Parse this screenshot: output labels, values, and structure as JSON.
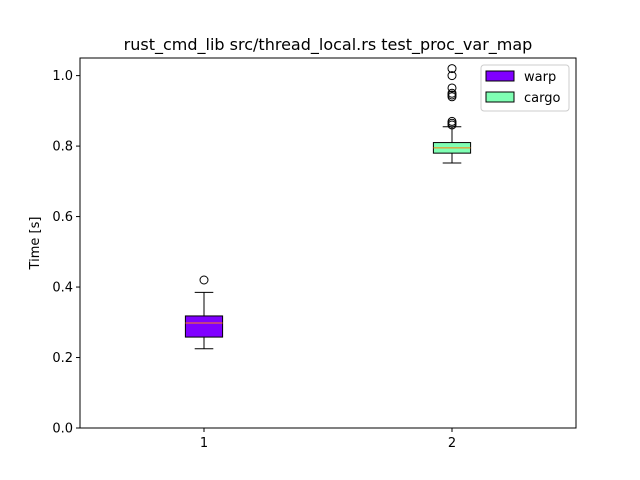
{
  "chart_data": {
    "type": "box",
    "title": "rust_cmd_lib src/thread_local.rs test_proc_var_map",
    "xlabel": "",
    "ylabel": "Time [s]",
    "ylim": [
      0,
      1.05
    ],
    "xlim": [
      0.5,
      2.5
    ],
    "yticks": [
      0.0,
      0.2,
      0.4,
      0.6,
      0.8,
      1.0
    ],
    "ytick_labels": [
      "0.0",
      "0.2",
      "0.4",
      "0.6",
      "0.8",
      "1.0"
    ],
    "xticks": [
      1,
      2
    ],
    "xtick_labels": [
      "1",
      "2"
    ],
    "grid": false,
    "legend_position": "top-right",
    "series": [
      {
        "name": "warp",
        "position": 1,
        "color": "#8000ff",
        "median_color": "#ff7f0e",
        "whisker_low": 0.225,
        "q1": 0.258,
        "median": 0.298,
        "q3": 0.318,
        "whisker_high": 0.385,
        "outliers": [
          0.42
        ]
      },
      {
        "name": "cargo",
        "position": 2,
        "color": "#80ffb4",
        "median_color": "#ff7f0e",
        "whisker_low": 0.752,
        "q1": 0.78,
        "median": 0.795,
        "q3": 0.81,
        "whisker_high": 0.855,
        "outliers": [
          0.86,
          0.865,
          0.87,
          0.94,
          0.945,
          0.95,
          0.965,
          1.0,
          1.02
        ]
      }
    ]
  }
}
